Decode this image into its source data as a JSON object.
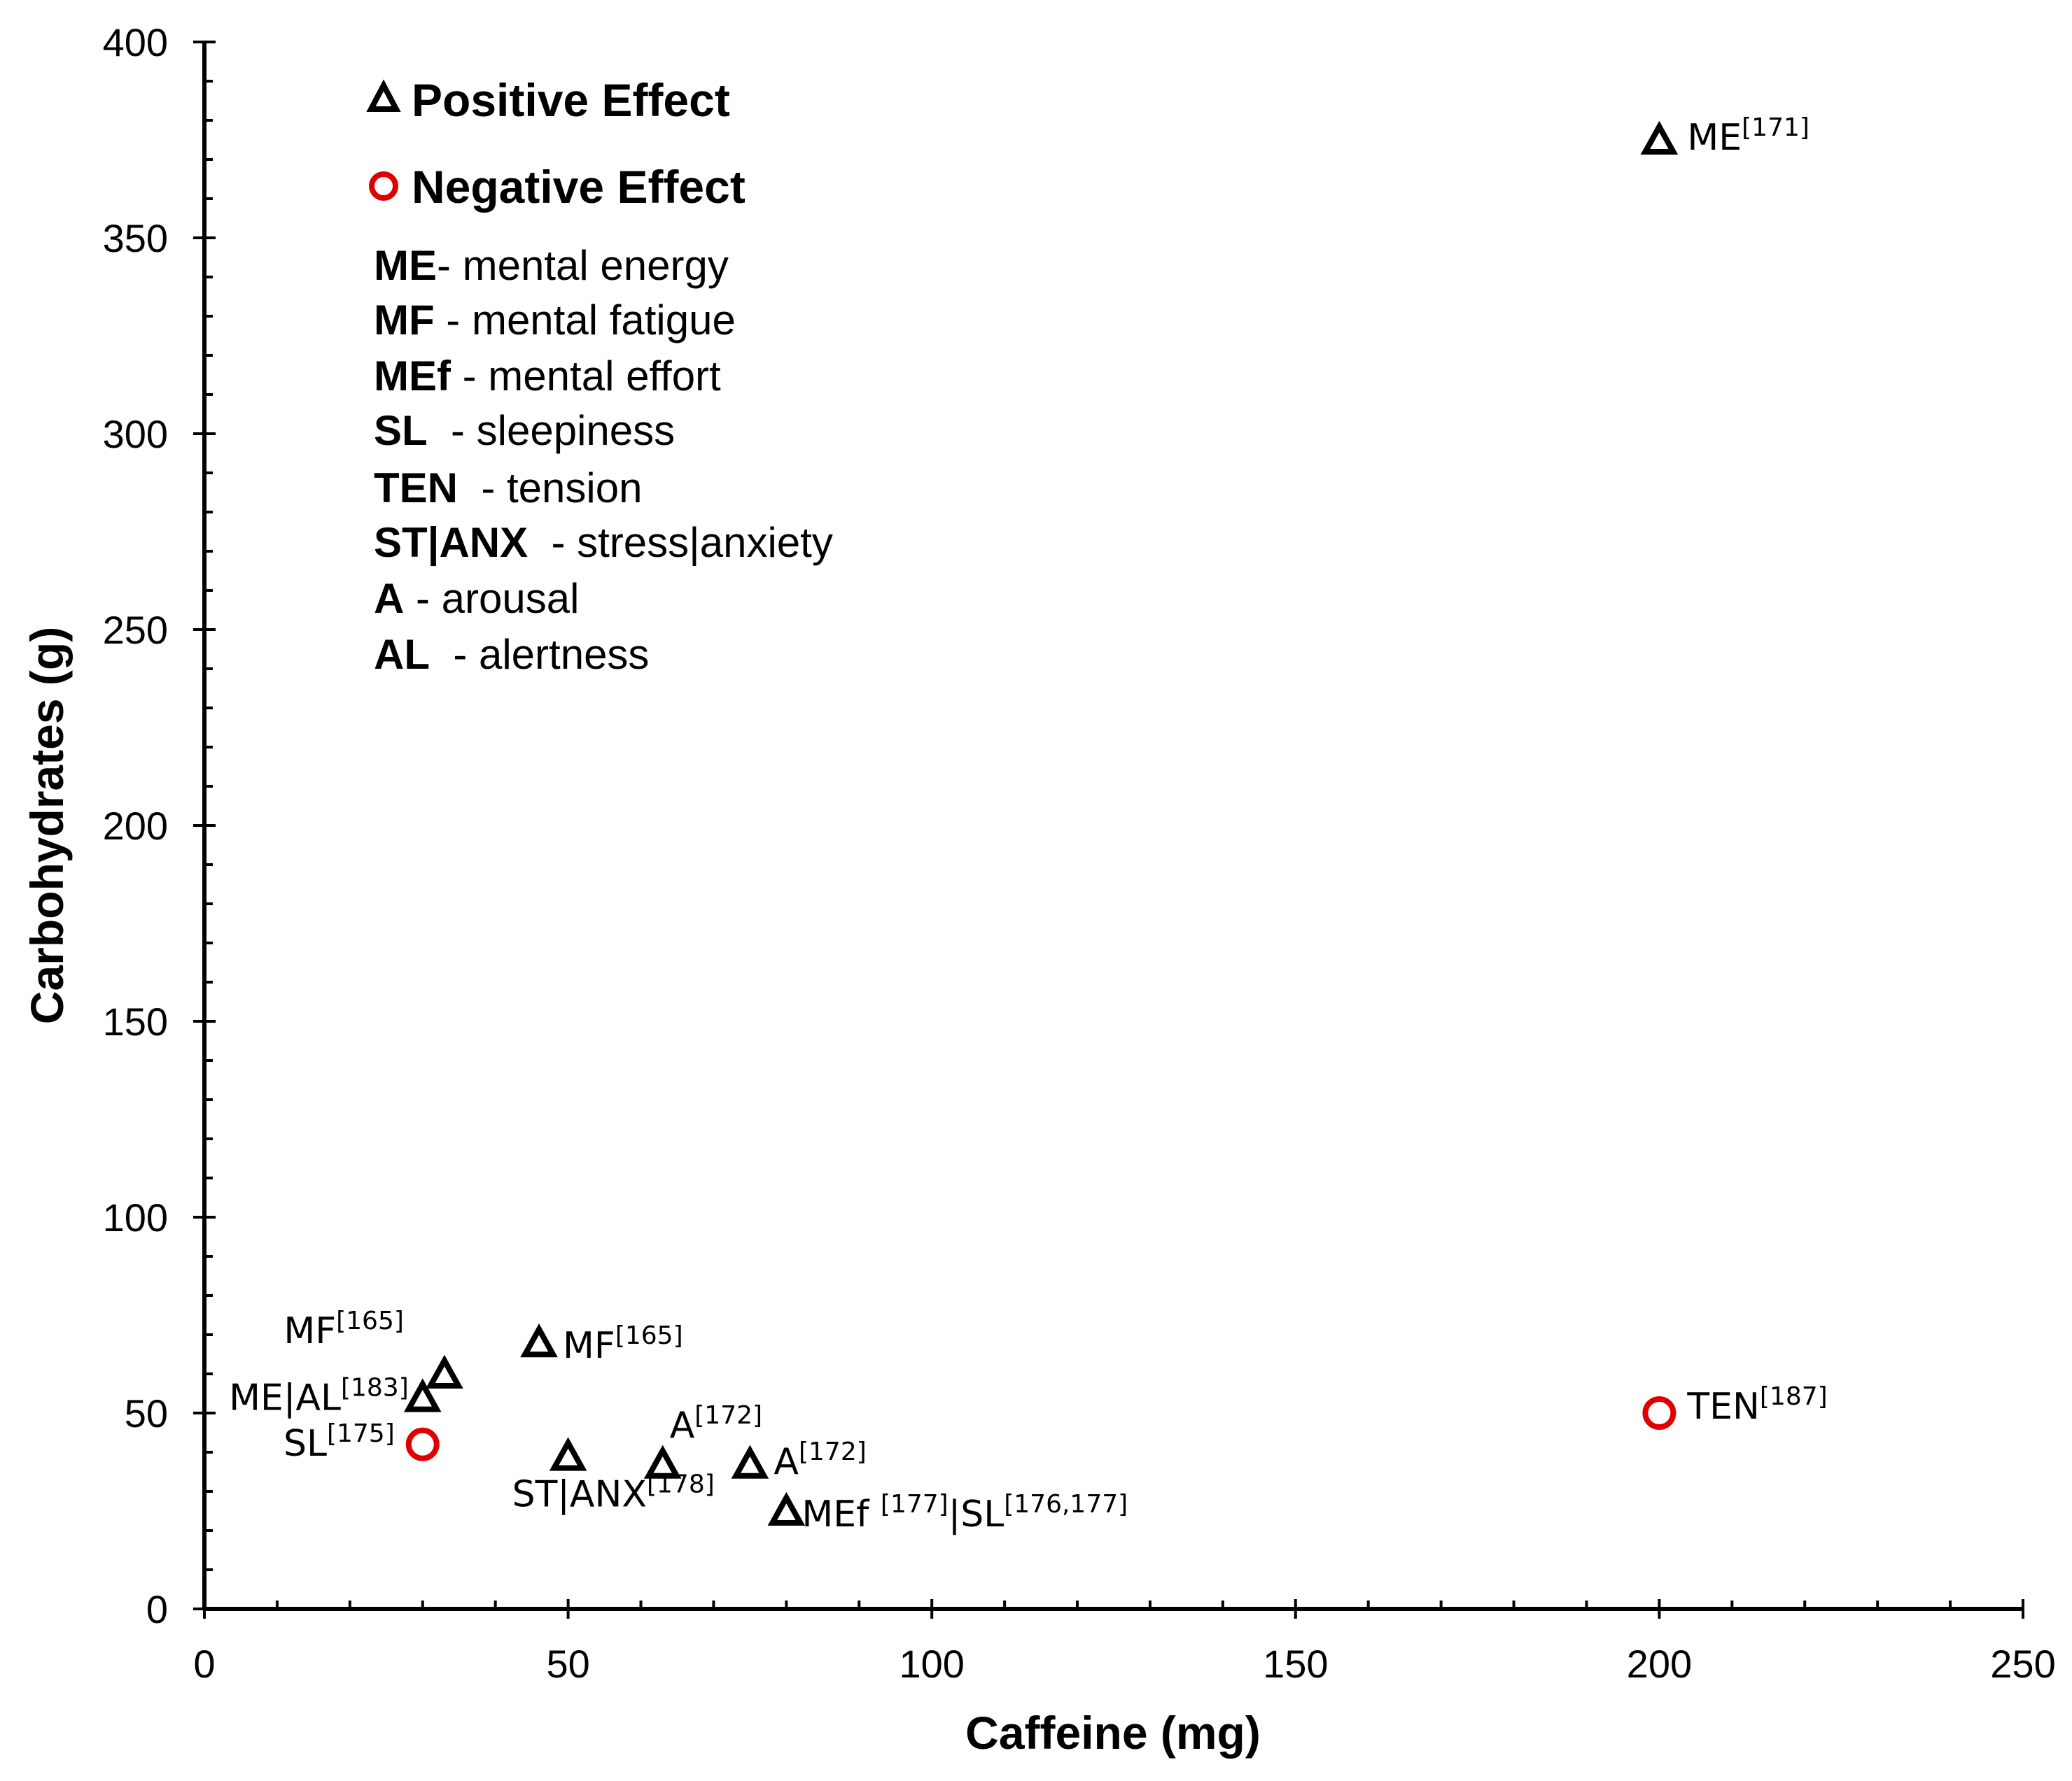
{
  "chart_data": {
    "type": "scatter",
    "title": "",
    "xlabel": "Caffeine (mg)",
    "ylabel": "Carbohydrates (g)",
    "xlim": [
      0,
      250
    ],
    "ylim": [
      0,
      400
    ],
    "xticks": [
      "0",
      "50",
      "100",
      "150",
      "200",
      "250"
    ],
    "yticks": [
      "0",
      "50",
      "100",
      "150",
      "200",
      "250",
      "300",
      "350",
      "400"
    ],
    "grid": false,
    "legend": {
      "positive_label": "Positive Effect",
      "negative_label": "Negative Effect",
      "positive_color": "#000000",
      "negative_color": "#e00000",
      "abbreviations": [
        {
          "abbr": "ME",
          "sep": "- ",
          "desc": "mental energy"
        },
        {
          "abbr": "MF",
          "sep": " - ",
          "desc": "mental fatigue"
        },
        {
          "abbr": "MEf",
          "sep": " - ",
          "desc": "mental effort"
        },
        {
          "abbr": "SL",
          "sep": "  - ",
          "desc": "sleepiness"
        },
        {
          "abbr": "TEN",
          "sep": "  - ",
          "desc": "tension"
        },
        {
          "abbr": "ST|ANX",
          "sep": "  - ",
          "desc": "stress|anxiety"
        },
        {
          "abbr": "A",
          "sep": " - ",
          "desc": "arousal"
        },
        {
          "abbr": "AL",
          "sep": "  - ",
          "desc": "alertness"
        }
      ]
    },
    "series": [
      {
        "name": "Positive Effect",
        "marker": "triangle",
        "color": "#000000",
        "points": [
          {
            "x": 200,
            "y": 375,
            "label": "ME",
            "ref": "[171]"
          },
          {
            "x": 46,
            "y": 68,
            "label": "MF",
            "ref": "[165]"
          },
          {
            "x": 33,
            "y": 60,
            "label": "MF",
            "ref": "[165]"
          },
          {
            "x": 30,
            "y": 54,
            "label": "ME|AL",
            "ref": "[183]"
          },
          {
            "x": 50,
            "y": 39,
            "label": "ST|ANX",
            "ref": "[178]"
          },
          {
            "x": 63,
            "y": 37,
            "label": "A",
            "ref": "[172]"
          },
          {
            "x": 75,
            "y": 37,
            "label": "A",
            "ref": "[172]"
          },
          {
            "x": 80,
            "y": 25,
            "label": "MEf ",
            "ref": "[177]",
            "label2": "|SL",
            "ref2": "[176,177]"
          }
        ]
      },
      {
        "name": "Negative Effect",
        "marker": "circle",
        "color": "#e00000",
        "points": [
          {
            "x": 30,
            "y": 42,
            "label": "SL",
            "ref": "[175]"
          },
          {
            "x": 200,
            "y": 50,
            "label": "TEN",
            "ref": "[187]"
          }
        ]
      }
    ]
  }
}
